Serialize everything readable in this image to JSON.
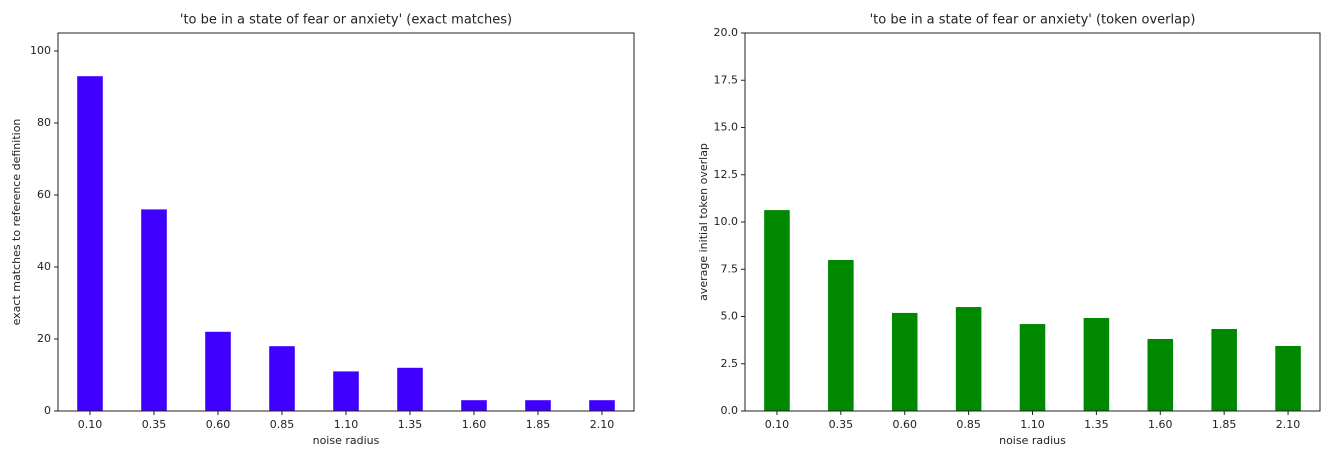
{
  "chart_data": [
    {
      "type": "bar",
      "title": "'to be in a state of fear or anxiety' (exact matches)",
      "xlabel": "noise radius",
      "ylabel": "exact matches to reference definition",
      "categories": [
        "0.10",
        "0.35",
        "0.60",
        "0.85",
        "1.10",
        "1.35",
        "1.60",
        "1.85",
        "2.10"
      ],
      "values": [
        93,
        56,
        22,
        18,
        11,
        12,
        3,
        3,
        3
      ],
      "color": "#3f00ff",
      "ylim": [
        0,
        105
      ],
      "yticks": [
        0,
        20,
        40,
        60,
        80,
        100
      ]
    },
    {
      "type": "bar",
      "title": "'to be in a state of fear or anxiety' (token overlap)",
      "xlabel": "noise radius",
      "ylabel": "average initial token overlap",
      "categories": [
        "0.10",
        "0.35",
        "0.60",
        "0.85",
        "1.10",
        "1.35",
        "1.60",
        "1.85",
        "2.10"
      ],
      "values": [
        10.63,
        7.99,
        5.19,
        5.5,
        4.6,
        4.92,
        3.81,
        4.34,
        3.44
      ],
      "color": "#008800",
      "ylim": [
        0,
        20
      ],
      "yticks": [
        {
          "value": 0,
          "label": "0.0"
        },
        2.5,
        {
          "value": 5,
          "label": "5.0"
        },
        7.5,
        {
          "value": 10,
          "label": "10.0"
        },
        12.5,
        {
          "value": 15,
          "label": "15.0"
        },
        17.5,
        {
          "value": 20,
          "label": "20.0"
        }
      ]
    }
  ]
}
